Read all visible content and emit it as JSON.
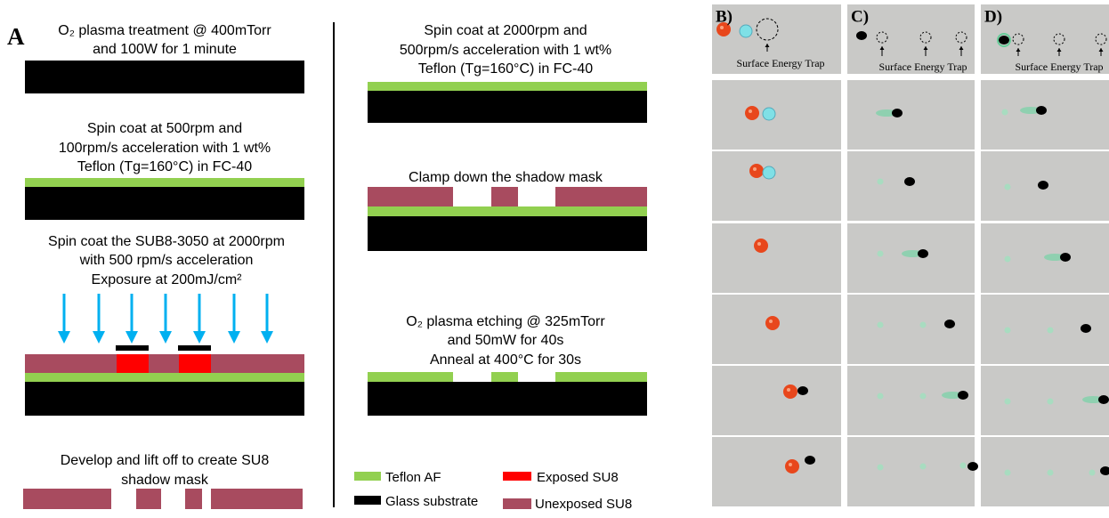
{
  "panel_a": {
    "label": "A",
    "left_steps": [
      {
        "lines": [
          "O₂ plasma treatment @ 400mTorr",
          "and 100W for 1 minute"
        ]
      },
      {
        "lines": [
          "Spin coat at 500rpm and",
          "100rpm/s acceleration with 1 wt%",
          "Teflon (Tg=160°C) in FC-40"
        ]
      },
      {
        "lines": [
          "Spin coat the SUB8-3050 at 2000rpm",
          "with 500 rpm/s acceleration",
          "Exposure at 200mJ/cm²"
        ]
      },
      {
        "lines": [
          "Develop and lift off to create SU8",
          "shadow mask"
        ]
      }
    ],
    "right_steps": [
      {
        "lines": [
          "Spin coat at 2000rpm and",
          "500rpm/s acceleration with 1 wt%",
          "Teflon (Tg=160°C) in FC-40"
        ]
      },
      {
        "lines": [
          "Clamp down the shadow mask"
        ]
      },
      {
        "lines": [
          "O₂ plasma etching @ 325mTorr",
          "and  50mW for 40s",
          "Anneal at 400°C for 30s"
        ]
      }
    ],
    "legend": [
      "Teflon AF",
      "Exposed SU8",
      "Glass substrate",
      "Unexposed SU8"
    ]
  },
  "photo_panels": [
    {
      "label": "B)",
      "trap_label": "Surface Energy Trap"
    },
    {
      "label": "C)",
      "trap_label": "Surface Energy Trap"
    },
    {
      "label": "D)",
      "trap_label": "Surface Energy Trap"
    }
  ]
}
